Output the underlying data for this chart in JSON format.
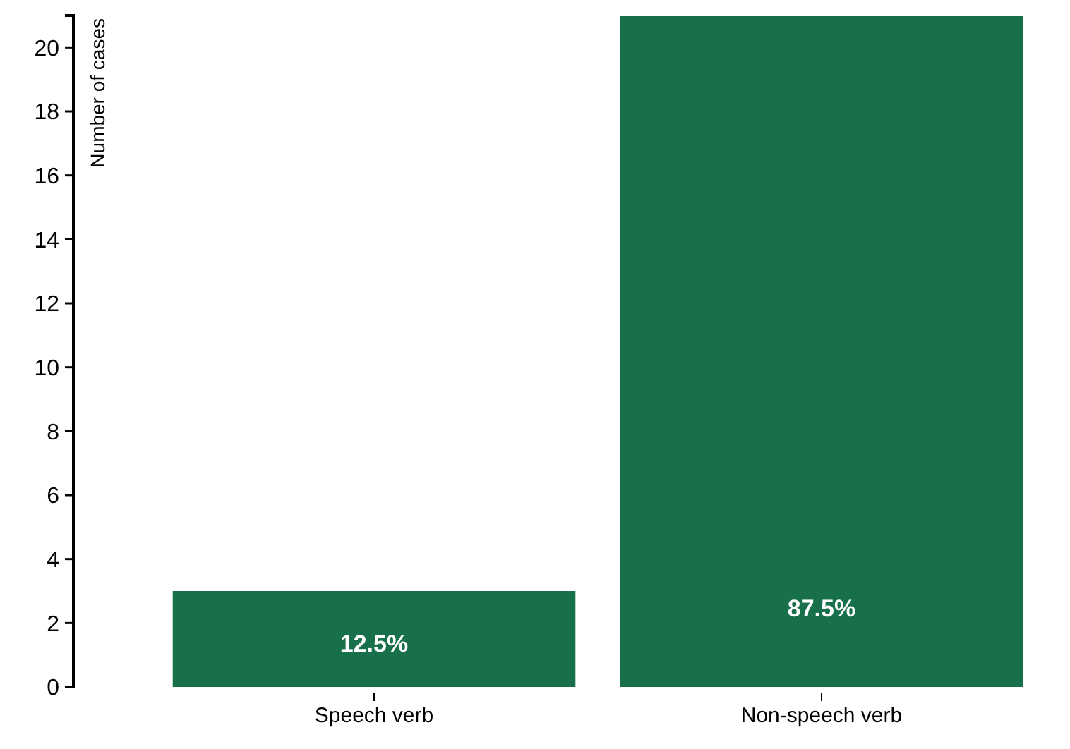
{
  "chart_data": {
    "type": "bar",
    "ylabel": "Number of cases",
    "categories": [
      "Speech verb",
      "Non-speech verb"
    ],
    "values": [
      3,
      21
    ],
    "color": "#17704a",
    "ylim": [
      0,
      21
    ],
    "yticks": [
      0,
      2,
      4,
      6,
      8,
      10,
      12,
      14,
      16,
      18,
      20
    ],
    "grid": false,
    "annotations": [
      "12.5%",
      "87.5%"
    ]
  }
}
